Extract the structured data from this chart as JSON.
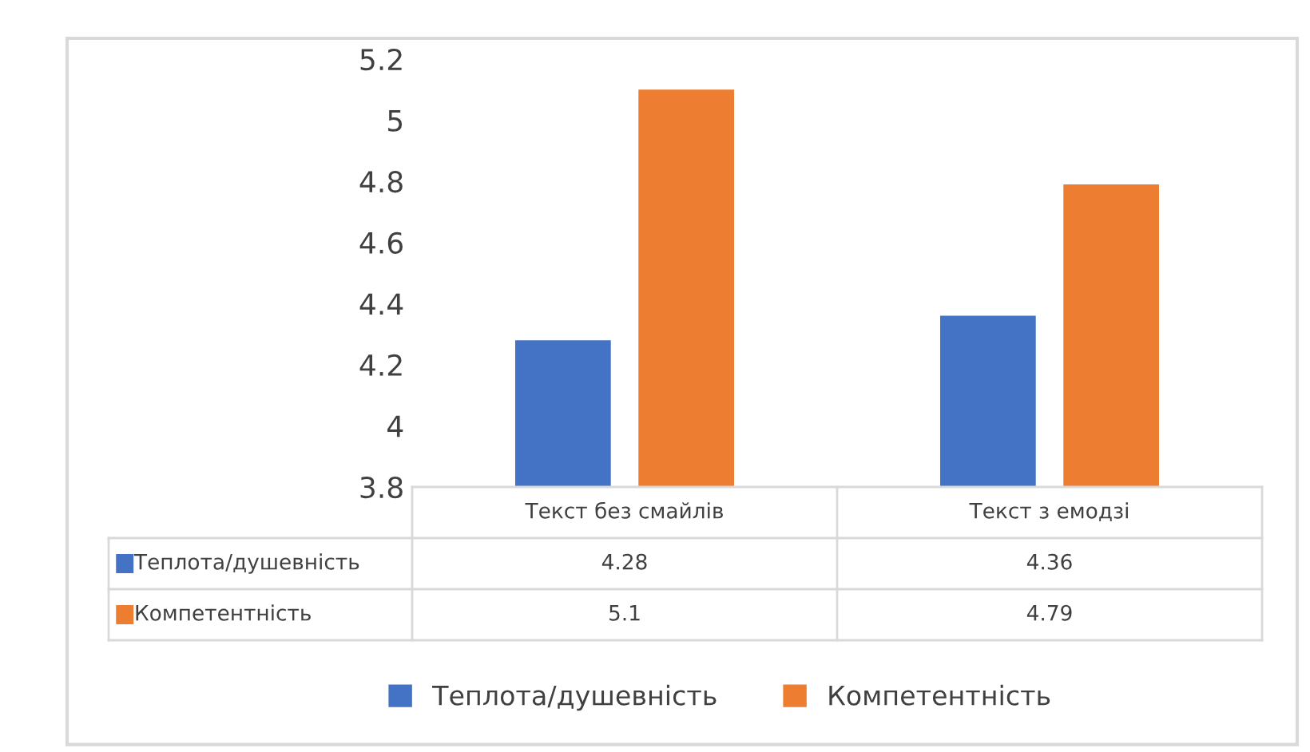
{
  "chart_data": {
    "type": "bar",
    "categories": [
      "Текст без смайлів",
      "Текст з емодзі"
    ],
    "series": [
      {
        "name": "Теплота/душевність",
        "color": "#4472c4",
        "values": [
          4.28,
          4.36
        ]
      },
      {
        "name": "Компетентність",
        "color": "#ed7d31",
        "values": [
          5.1,
          4.79
        ]
      }
    ],
    "ylim": [
      3.8,
      5.2
    ],
    "yticks": [
      3.8,
      4,
      4.2,
      4.4,
      4.6,
      4.8,
      5,
      5.2
    ],
    "grid": false,
    "legend": "bottom",
    "data_labels": true
  }
}
